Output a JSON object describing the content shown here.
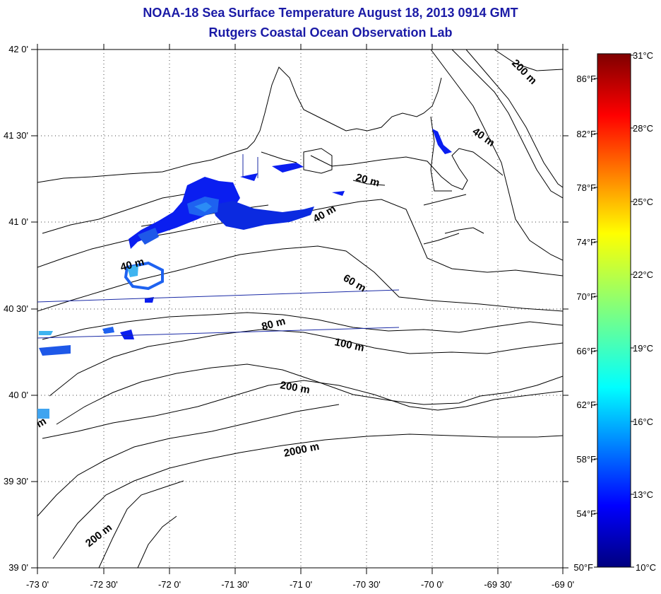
{
  "title": "NOAA-18 Sea Surface Temperature August 18, 2013 0914 GMT",
  "subtitle": "Rutgers Coastal Ocean Observation Lab",
  "map": {
    "lon_labels": [
      "-73 0'",
      "-72 30'",
      "-72 0'",
      "-71 30'",
      "-71 0'",
      "-70 30'",
      "-70 0'",
      "-69 30'",
      "-69 0'"
    ],
    "lat_labels": [
      "42 0'",
      "41 30'",
      "41 0'",
      "40 30'",
      "40 0'",
      "39 30'",
      "39 0'"
    ],
    "lon_range": [
      -73,
      -69
    ],
    "lat_range": [
      39,
      42
    ],
    "grid": "dotted",
    "contour_labels": [
      "200 m",
      "40 m",
      "20 m",
      "40 m",
      "40 m",
      "60 m",
      "80 m",
      "100 m",
      "200 m",
      "2000 m",
      "200 m",
      "m"
    ]
  },
  "colorbar": {
    "celsius": [
      "31°C",
      "28°C",
      "25°C",
      "22°C",
      "19°C",
      "16°C",
      "13°C",
      "10°C"
    ],
    "fahrenheit": [
      "86°F",
      "82°F",
      "78°F",
      "74°F",
      "70°F",
      "66°F",
      "62°F",
      "58°F",
      "54°F",
      "50°F"
    ],
    "range_c": [
      10,
      31
    ]
  }
}
